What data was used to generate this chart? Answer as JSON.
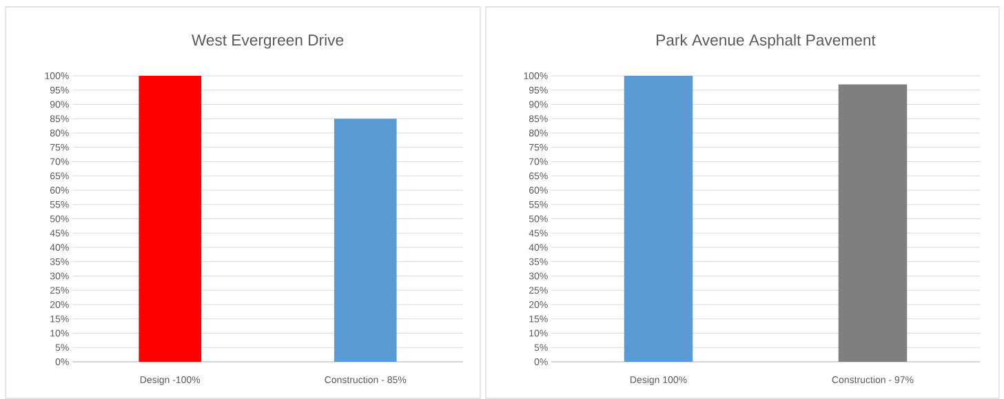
{
  "chart_data": [
    {
      "type": "bar",
      "title": "West Evergreen Drive",
      "categories": [
        "Design -100%",
        "Construction - 85%"
      ],
      "values": [
        100,
        85
      ],
      "colors": [
        "#ff0000",
        "#5b9bd5"
      ],
      "ylim": [
        0,
        100
      ],
      "yticks": [
        {
          "value": 0,
          "label": "0%"
        },
        {
          "value": 5,
          "label": "5%"
        },
        {
          "value": 10,
          "label": "10%"
        },
        {
          "value": 15,
          "label": "15%"
        },
        {
          "value": 20,
          "label": "20%"
        },
        {
          "value": 25,
          "label": "25%"
        },
        {
          "value": 30,
          "label": "30%"
        },
        {
          "value": 35,
          "label": "35%"
        },
        {
          "value": 40,
          "label": "40%"
        },
        {
          "value": 45,
          "label": "45%"
        },
        {
          "value": 50,
          "label": "50%"
        },
        {
          "value": 55,
          "label": "55%"
        },
        {
          "value": 60,
          "label": "60%"
        },
        {
          "value": 65,
          "label": "65%"
        },
        {
          "value": 70,
          "label": "70%"
        },
        {
          "value": 75,
          "label": "75%"
        },
        {
          "value": 80,
          "label": "80%"
        },
        {
          "value": 85,
          "label": "85%"
        },
        {
          "value": 90,
          "label": "90%"
        },
        {
          "value": 95,
          "label": "95%"
        },
        {
          "value": 100,
          "label": "100%"
        }
      ],
      "grid": "y"
    },
    {
      "type": "bar",
      "title": "Park Avenue Asphalt Pavement",
      "categories": [
        "Design 100%",
        "Construction - 97%"
      ],
      "values": [
        100,
        97
      ],
      "colors": [
        "#5b9bd5",
        "#7f7f7f"
      ],
      "ylim": [
        0,
        100
      ],
      "yticks": [
        {
          "value": 0,
          "label": "0%"
        },
        {
          "value": 5,
          "label": "5%"
        },
        {
          "value": 10,
          "label": "10%"
        },
        {
          "value": 15,
          "label": "15%"
        },
        {
          "value": 20,
          "label": "20%"
        },
        {
          "value": 25,
          "label": "25%"
        },
        {
          "value": 30,
          "label": "30%"
        },
        {
          "value": 35,
          "label": "35%"
        },
        {
          "value": 40,
          "label": "40%"
        },
        {
          "value": 45,
          "label": "45%"
        },
        {
          "value": 50,
          "label": "50%"
        },
        {
          "value": 55,
          "label": "55%"
        },
        {
          "value": 60,
          "label": "60%"
        },
        {
          "value": 65,
          "label": "65%"
        },
        {
          "value": 70,
          "label": "70%"
        },
        {
          "value": 75,
          "label": "75%"
        },
        {
          "value": 80,
          "label": "80%"
        },
        {
          "value": 85,
          "label": "85%"
        },
        {
          "value": 90,
          "label": "90%"
        },
        {
          "value": 95,
          "label": "95%"
        },
        {
          "value": 100,
          "label": "100%"
        }
      ],
      "grid": "y"
    }
  ]
}
